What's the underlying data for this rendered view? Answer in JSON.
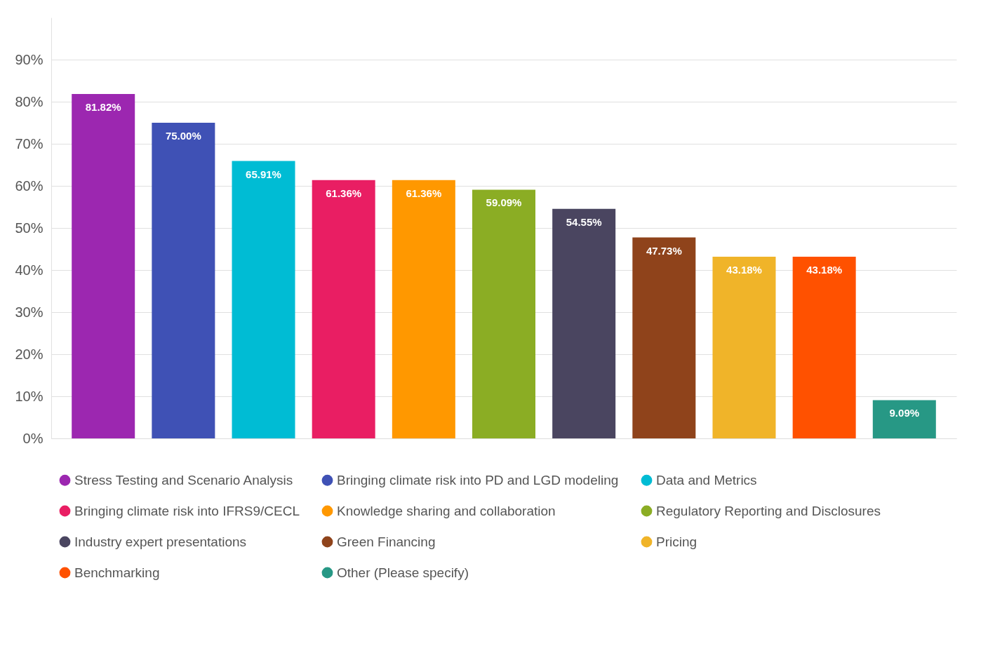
{
  "chart_data": {
    "type": "bar",
    "categories": [
      null,
      null,
      null,
      null,
      null,
      null,
      null,
      null,
      null,
      null,
      null
    ],
    "stacked": true,
    "series": [
      {
        "name": "Stress Testing and Scenario Analysis",
        "color": "#9c27b0",
        "values": [
          81.82,
          null,
          null,
          null,
          null,
          null,
          null,
          null,
          null,
          null,
          null
        ],
        "value_labels": [
          "81.82%",
          null,
          null,
          null,
          null,
          null,
          null,
          null,
          null,
          null,
          null
        ]
      },
      {
        "name": "Bringing climate risk into PD and LGD modeling",
        "color": "#3f51b5",
        "values": [
          null,
          75.0,
          null,
          null,
          null,
          null,
          null,
          null,
          null,
          null,
          null
        ],
        "value_labels": [
          null,
          "75.00%",
          null,
          null,
          null,
          null,
          null,
          null,
          null,
          null,
          null
        ]
      },
      {
        "name": "Data and Metrics",
        "color": "#00bcd4",
        "values": [
          null,
          null,
          65.91,
          null,
          null,
          null,
          null,
          null,
          null,
          null,
          null
        ],
        "value_labels": [
          null,
          null,
          "65.91%",
          null,
          null,
          null,
          null,
          null,
          null,
          null,
          null
        ]
      },
      {
        "name": "Bringing climate risk into IFRS9/CECL",
        "color": "#e91e63",
        "values": [
          null,
          null,
          null,
          61.36,
          null,
          null,
          null,
          null,
          null,
          null,
          null
        ],
        "value_labels": [
          null,
          null,
          null,
          "61.36%",
          null,
          null,
          null,
          null,
          null,
          null,
          null
        ]
      },
      {
        "name": "Knowledge sharing and collaboration",
        "color": "#ff9800",
        "values": [
          null,
          null,
          null,
          null,
          61.36,
          null,
          null,
          null,
          null,
          null,
          null
        ],
        "value_labels": [
          null,
          null,
          null,
          null,
          "61.36%",
          null,
          null,
          null,
          null,
          null,
          null
        ]
      },
      {
        "name": "Regulatory Reporting and Disclosures",
        "color": "#8bad24",
        "values": [
          null,
          null,
          null,
          null,
          null,
          59.09,
          null,
          null,
          null,
          null,
          null
        ],
        "value_labels": [
          null,
          null,
          null,
          null,
          null,
          "59.09%",
          null,
          null,
          null,
          null,
          null
        ]
      },
      {
        "name": "Industry expert presentations",
        "color": "#4a4560",
        "values": [
          null,
          null,
          null,
          null,
          null,
          null,
          54.55,
          null,
          null,
          null,
          null
        ],
        "value_labels": [
          null,
          null,
          null,
          null,
          null,
          null,
          "54.55%",
          null,
          null,
          null,
          null
        ]
      },
      {
        "name": "Green Financing",
        "color": "#8f431b",
        "values": [
          null,
          null,
          null,
          null,
          null,
          null,
          null,
          47.73,
          null,
          null,
          null
        ],
        "value_labels": [
          null,
          null,
          null,
          null,
          null,
          null,
          null,
          "47.73%",
          null,
          null,
          null
        ]
      },
      {
        "name": "Pricing",
        "color": "#f0b429",
        "values": [
          null,
          null,
          null,
          null,
          null,
          null,
          null,
          null,
          43.18,
          null,
          null
        ],
        "value_labels": [
          null,
          null,
          null,
          null,
          null,
          null,
          null,
          null,
          "43.18%",
          null,
          null
        ]
      },
      {
        "name": "Benchmarking",
        "color": "#ff5100",
        "values": [
          null,
          null,
          null,
          null,
          null,
          null,
          null,
          null,
          null,
          43.18,
          null
        ],
        "value_labels": [
          null,
          null,
          null,
          null,
          null,
          null,
          null,
          null,
          null,
          "43.18%",
          null
        ]
      },
      {
        "name": "Other (Please specify)",
        "color": "#279885",
        "values": [
          null,
          null,
          null,
          null,
          null,
          null,
          null,
          null,
          null,
          null,
          9.09
        ],
        "value_labels": [
          null,
          null,
          null,
          null,
          null,
          null,
          null,
          null,
          null,
          null,
          "9.09%"
        ]
      }
    ],
    "ylim": [
      0,
      100
    ],
    "yticks": [
      {
        "value": 0,
        "label": "0%"
      },
      {
        "value": 10,
        "label": "10%"
      },
      {
        "value": 20,
        "label": "20%"
      },
      {
        "value": 30,
        "label": "30%"
      },
      {
        "value": 40,
        "label": "40%"
      },
      {
        "value": 50,
        "label": "50%"
      },
      {
        "value": 60,
        "label": "60%"
      },
      {
        "value": 70,
        "label": "70%"
      },
      {
        "value": 80,
        "label": "80%"
      },
      {
        "value": 90,
        "label": "90%"
      }
    ],
    "grid": "y",
    "legend": "bottom",
    "tick_labels": "y"
  }
}
